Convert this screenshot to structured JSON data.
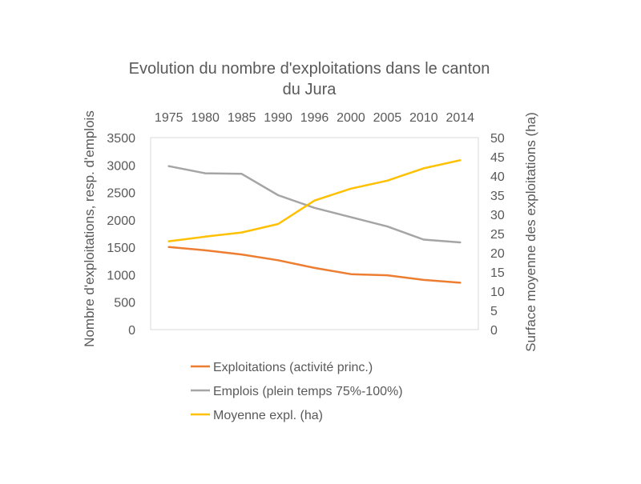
{
  "chart_data": {
    "type": "line",
    "title_lines": [
      "Evolution du nombre d'exploitations dans le canton",
      "du Jura"
    ],
    "categories": [
      "1975",
      "1980",
      "1985",
      "1990",
      "1996",
      "2000",
      "2005",
      "2010",
      "2014"
    ],
    "y_left": {
      "label": "Nombre d'exploitations, resp. d'emplois",
      "range": [
        0,
        3500
      ],
      "ticks": [
        0,
        500,
        1000,
        1500,
        2000,
        2500,
        3000,
        3500
      ]
    },
    "y_right": {
      "label": "Surface moyenne des exploitations (ha)",
      "range": [
        0,
        50
      ],
      "ticks": [
        0,
        5,
        10,
        15,
        20,
        25,
        30,
        35,
        40,
        45,
        50
      ]
    },
    "series": [
      {
        "name": "Exploitations (activité princ.)",
        "axis": "left",
        "color": "#ED7D31",
        "values": [
          1505,
          1445,
          1370,
          1265,
          1125,
          1010,
          990,
          905,
          855
        ]
      },
      {
        "name": "Emplois (plein temps 75%-100%)",
        "axis": "left",
        "color": "#A5A5A5",
        "values": [
          2980,
          2850,
          2840,
          2450,
          2220,
          2050,
          1880,
          1640,
          1590
        ]
      },
      {
        "name": "Moyenne expl. (ha)",
        "axis": "right",
        "color": "#FFC000",
        "values": [
          23.0,
          24.2,
          25.3,
          27.5,
          33.6,
          36.7,
          38.8,
          42.0,
          44.1
        ]
      }
    ],
    "legend_position": "bottom",
    "grid": false
  }
}
